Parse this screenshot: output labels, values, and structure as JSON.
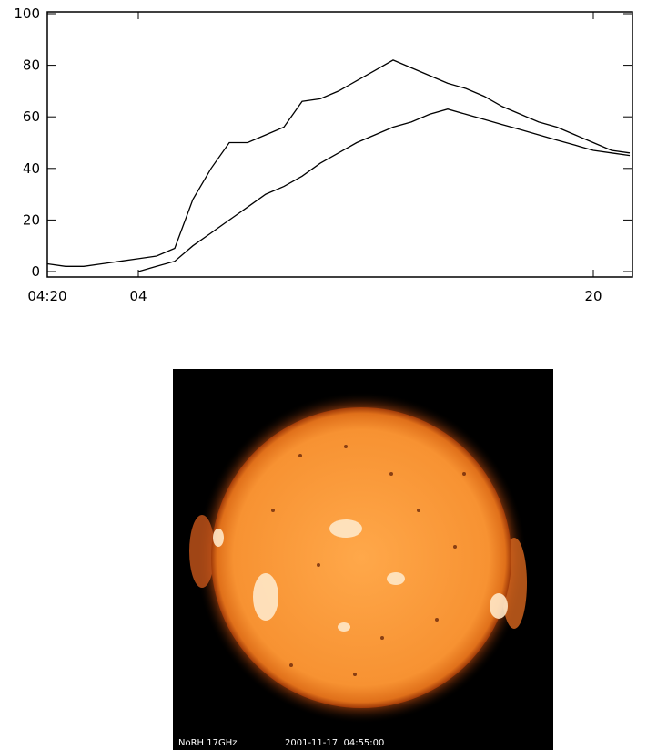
{
  "chart_data": {
    "type": "line",
    "x": [
      0,
      2,
      4,
      6,
      8,
      10,
      12,
      14,
      16,
      18,
      20,
      22,
      24,
      26,
      28,
      30,
      32,
      34,
      36,
      38,
      40,
      42,
      44,
      46,
      48,
      50,
      52,
      54,
      56,
      58,
      60,
      62,
      64
    ],
    "series": [
      {
        "color": "#000000",
        "values": [
          3,
          2,
          2,
          3,
          4,
          5,
          6,
          9,
          28,
          40,
          50,
          50,
          53,
          56,
          66,
          67,
          70,
          74,
          78,
          82,
          79,
          76,
          73,
          71,
          68,
          64,
          61,
          58,
          56,
          53,
          50,
          47,
          46
        ]
      },
      {
        "color": "#000000",
        "values": [
          null,
          null,
          null,
          null,
          null,
          0,
          2,
          4,
          10,
          15,
          20,
          25,
          30,
          33,
          37,
          42,
          46,
          50,
          53,
          56,
          58,
          61,
          63,
          61,
          59,
          57,
          55,
          53,
          51,
          49,
          47,
          46,
          45
        ]
      }
    ],
    "xlim": [
      0,
      64.3
    ],
    "xticks": [
      {
        "value": 0,
        "label": "04:20"
      },
      {
        "value": 10,
        "label": "04"
      },
      {
        "value": 60,
        "label": "20"
      }
    ],
    "ylim": [
      0,
      100
    ],
    "yticks": [
      0,
      20,
      40,
      60,
      80,
      100
    ]
  },
  "image": {
    "instrument": "NoRH 17GHz",
    "timestamp": "2001-11-17  04:55:00"
  }
}
